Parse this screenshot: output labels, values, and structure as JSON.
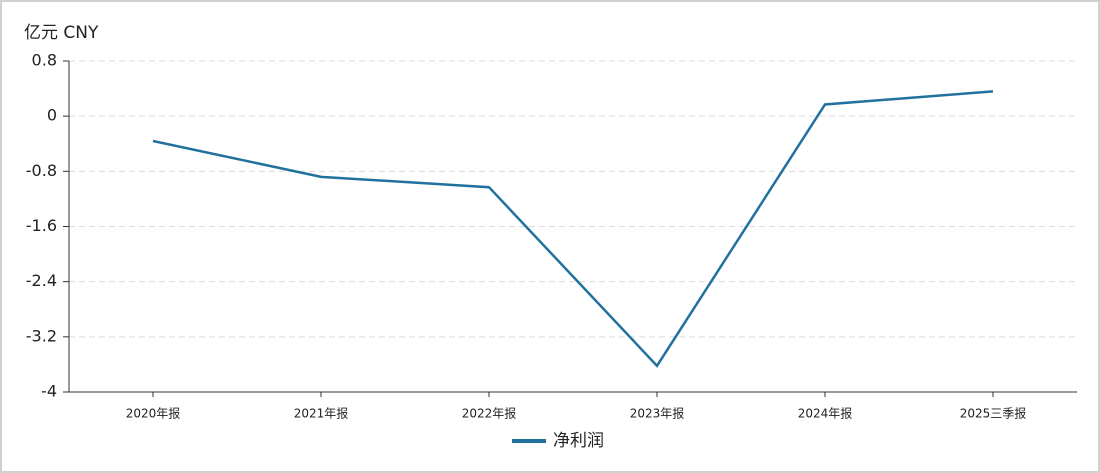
{
  "chart_data": {
    "type": "line",
    "y_label": "亿元  CNY",
    "categories": [
      "2020年报",
      "2021年报",
      "2022年报",
      "2023年报",
      "2024年报",
      "2025三季报"
    ],
    "series": [
      {
        "name": "净利润",
        "color": "#21719e",
        "values": [
          -0.36,
          -0.88,
          -1.03,
          -3.62,
          0.17,
          0.36
        ]
      }
    ],
    "ylim": [
      -4,
      0.8
    ],
    "yticks": [
      0.8,
      0,
      -0.8,
      -1.6,
      -2.4,
      -3.2,
      -4
    ],
    "grid": true,
    "legend": "bottom"
  }
}
